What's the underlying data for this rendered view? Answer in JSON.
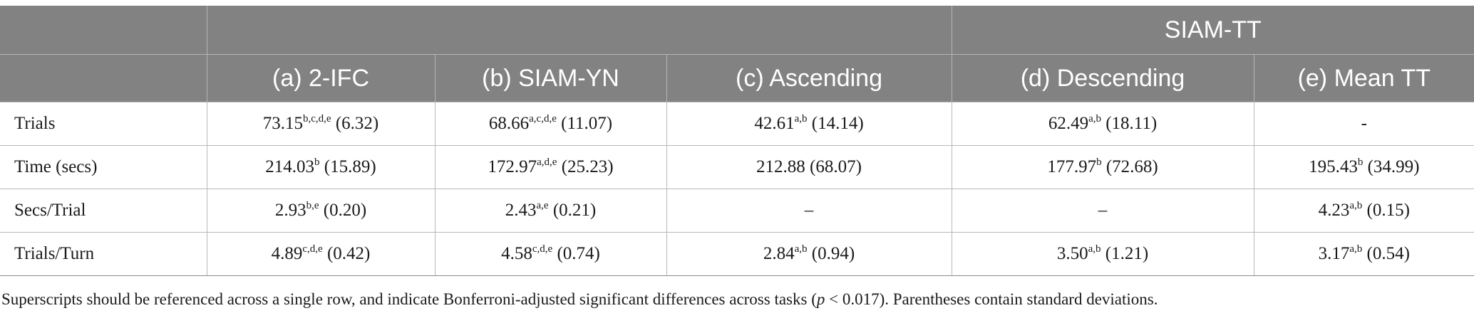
{
  "header": {
    "group_label": "SIAM-TT",
    "columns": [
      "(a) 2-IFC",
      "(b) SIAM-YN",
      "(c) Ascending",
      "(d) Descending",
      "(e) Mean TT"
    ]
  },
  "rows": [
    {
      "label": "Trials",
      "cells": [
        {
          "value": "73.15",
          "sup": "b,c,d,e",
          "sd": "(6.32)"
        },
        {
          "value": "68.66",
          "sup": "a,c,d,e",
          "sd": "(11.07)"
        },
        {
          "value": "42.61",
          "sup": "a,b",
          "sd": "(14.14)"
        },
        {
          "value": "62.49",
          "sup": "a,b",
          "sd": "(18.11)"
        },
        {
          "value": "-",
          "sup": "",
          "sd": ""
        }
      ]
    },
    {
      "label": "Time (secs)",
      "cells": [
        {
          "value": "214.03",
          "sup": "b",
          "sd": "(15.89)"
        },
        {
          "value": "172.97",
          "sup": "a,d,e",
          "sd": "(25.23)"
        },
        {
          "value": "212.88",
          "sup": "",
          "sd": "(68.07)"
        },
        {
          "value": "177.97",
          "sup": "b",
          "sd": "(72.68)"
        },
        {
          "value": "195.43",
          "sup": "b",
          "sd": "(34.99)"
        }
      ]
    },
    {
      "label": "Secs/Trial",
      "cells": [
        {
          "value": "2.93",
          "sup": "b,e",
          "sd": "(0.20)"
        },
        {
          "value": "2.43",
          "sup": "a,e",
          "sd": "(0.21)"
        },
        {
          "value": "–",
          "sup": "",
          "sd": ""
        },
        {
          "value": "–",
          "sup": "",
          "sd": ""
        },
        {
          "value": "4.23",
          "sup": "a,b",
          "sd": "(0.15)"
        }
      ]
    },
    {
      "label": "Trials/Turn",
      "cells": [
        {
          "value": "4.89",
          "sup": "c,d,e",
          "sd": "(0.42)"
        },
        {
          "value": "4.58",
          "sup": "c,d,e",
          "sd": "(0.74)"
        },
        {
          "value": "2.84",
          "sup": "a,b",
          "sd": "(0.94)"
        },
        {
          "value": "3.50",
          "sup": "a,b",
          "sd": "(1.21)"
        },
        {
          "value": "3.17",
          "sup": "a,b",
          "sd": "(0.54)"
        }
      ]
    }
  ],
  "footnote": {
    "before": "Superscripts should be referenced across a single row, and indicate Bonferroni-adjusted significant differences across tasks (",
    "italic": "p",
    "after": " < 0.017). Parentheses contain standard deviations."
  }
}
